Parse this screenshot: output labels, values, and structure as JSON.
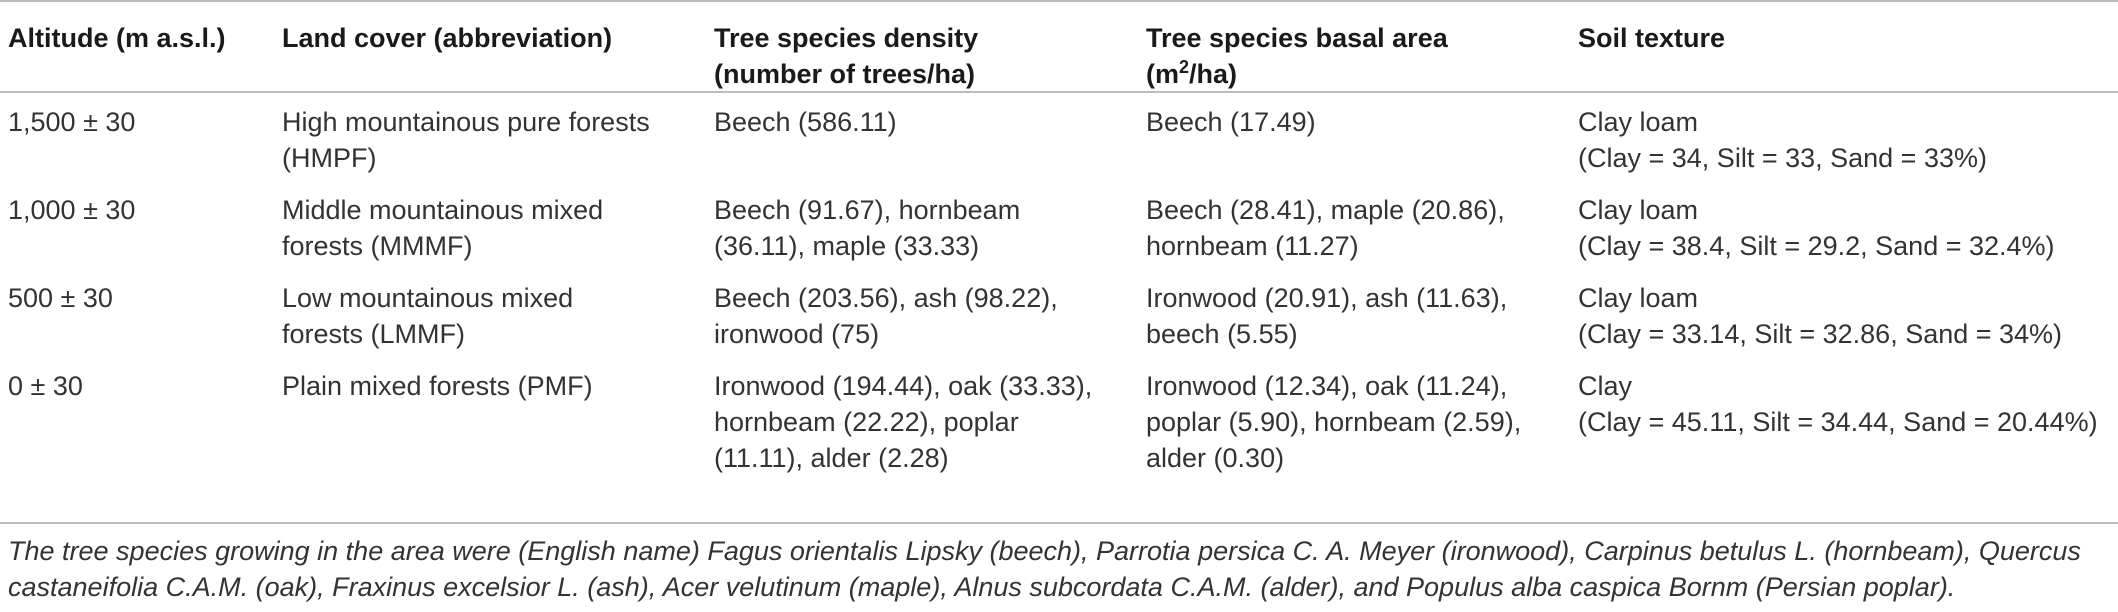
{
  "table": {
    "headers": {
      "altitude": "Altitude (m a.s.l.)",
      "land_cover": "Land cover (abbreviation)",
      "density_line1": "Tree species density",
      "density_line2": "(number of trees/ha)",
      "basal_line1": "Tree species basal area",
      "basal_line2_pre": "(m",
      "basal_line2_sup": "2",
      "basal_line2_post": "/ha)",
      "soil": "Soil texture"
    },
    "rows": [
      {
        "altitude": "1,500 ± 30",
        "land_cover_1": "High mountainous pure forests",
        "land_cover_2": "(HMPF)",
        "density_1": "Beech (586.11)",
        "density_2": "",
        "density_3": "",
        "basal_1": "Beech (17.49)",
        "basal_2": "",
        "basal_3": "",
        "soil_1": "Clay loam",
        "soil_2": "(Clay = 34, Silt = 33, Sand = 33%)"
      },
      {
        "altitude": "1,000 ± 30",
        "land_cover_1": "Middle mountainous mixed",
        "land_cover_2": "forests (MMMF)",
        "density_1": "Beech (91.67), hornbeam",
        "density_2": "(36.11), maple (33.33)",
        "density_3": "",
        "basal_1": "Beech (28.41), maple (20.86),",
        "basal_2": "hornbeam (11.27)",
        "basal_3": "",
        "soil_1": "Clay loam",
        "soil_2": "(Clay = 38.4, Silt = 29.2, Sand = 32.4%)"
      },
      {
        "altitude": "500 ± 30",
        "land_cover_1": "Low mountainous mixed",
        "land_cover_2": "forests (LMMF)",
        "density_1": "Beech (203.56), ash (98.22),",
        "density_2": "ironwood (75)",
        "density_3": "",
        "basal_1": "Ironwood (20.91), ash (11.63),",
        "basal_2": "beech (5.55)",
        "basal_3": "",
        "soil_1": "Clay loam",
        "soil_2": "(Clay = 33.14, Silt = 32.86, Sand = 34%)"
      },
      {
        "altitude": "0 ± 30",
        "land_cover_1": "Plain mixed forests (PMF)",
        "land_cover_2": "",
        "density_1": "Ironwood (194.44), oak (33.33),",
        "density_2": "hornbeam (22.22), poplar",
        "density_3": "(11.11), alder (2.28)",
        "basal_1": "Ironwood (12.34), oak (11.24),",
        "basal_2": "poplar (5.90), hornbeam (2.59),",
        "basal_3": "alder (0.30)",
        "soil_1": "Clay",
        "soil_2": "(Clay = 45.11, Silt = 34.44, Sand = 20.44%)"
      }
    ]
  },
  "footnote": {
    "line1": "The tree species growing in the area were (English name) Fagus orientalis Lipsky (beech), Parrotia persica C. A. Meyer (ironwood), Carpinus betulus L. (hornbeam), Quercus",
    "line2": "castaneifolia C.A.M. (oak), Fraxinus excelsior L. (ash), Acer velutinum (maple), Alnus subcordata C.A.M. (alder), and Populus alba caspica Bornm (Persian poplar)."
  }
}
